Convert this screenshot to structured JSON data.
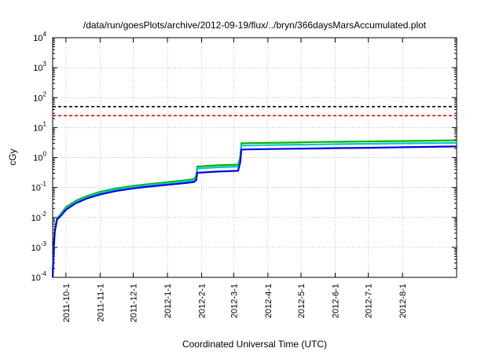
{
  "chart_data": {
    "type": "line",
    "title": "/data/run/goesPlots/archive/2012-09-19/flux/../bryn/366daysMarsAccumulated.plot",
    "xlabel": "Coordinated Universal Time (UTC)",
    "ylabel": "cGy",
    "yscale": "log",
    "ylim": [
      0.0001,
      10000
    ],
    "xlim": [
      "2011-09-19",
      "2012-09-19"
    ],
    "grid": true,
    "legend": "none",
    "x_ticks": [
      "2011-10-1",
      "2011-11-1",
      "2011-12-1",
      "2012-1-1",
      "2012-2-1",
      "2012-3-1",
      "2012-4-1",
      "2012-5-1",
      "2012-6-1",
      "2012-7-1",
      "2012-8-1"
    ],
    "y_ticks": [
      {
        "value": 0.0001,
        "base": "10",
        "exp": "-4"
      },
      {
        "value": 0.001,
        "base": "10",
        "exp": "-3"
      },
      {
        "value": 0.01,
        "base": "10",
        "exp": "-2"
      },
      {
        "value": 0.1,
        "base": "10",
        "exp": "-1"
      },
      {
        "value": 1,
        "base": "10",
        "exp": "0"
      },
      {
        "value": 10,
        "base": "10",
        "exp": "1"
      },
      {
        "value": 100,
        "base": "10",
        "exp": "2"
      },
      {
        "value": 1000,
        "base": "10",
        "exp": "3"
      },
      {
        "value": 10000,
        "base": "10",
        "exp": "4"
      }
    ],
    "reference_lines": [
      {
        "value": 50,
        "color": "#000000",
        "style": "dashed"
      },
      {
        "value": 25,
        "color": "#ff0000",
        "style": "dashed"
      }
    ],
    "series": [
      {
        "color": "#00b400",
        "points": [
          [
            "2011-09-19",
            0.0001
          ],
          [
            "2011-09-20",
            0.0011
          ],
          [
            "2011-09-21",
            0.004
          ],
          [
            "2011-09-23",
            0.0095
          ],
          [
            "2011-09-26",
            0.0125
          ],
          [
            "2011-10-01",
            0.022
          ],
          [
            "2011-10-10",
            0.036
          ],
          [
            "2011-10-20",
            0.052
          ],
          [
            "2011-11-01",
            0.072
          ],
          [
            "2011-11-15",
            0.092
          ],
          [
            "2011-12-01",
            0.113
          ],
          [
            "2011-12-15",
            0.13
          ],
          [
            "2012-01-01",
            0.15
          ],
          [
            "2012-01-15",
            0.17
          ],
          [
            "2012-01-25",
            0.19
          ],
          [
            "2012-01-27",
            0.24
          ],
          [
            "2012-01-28",
            0.5
          ],
          [
            "2012-02-15",
            0.55
          ],
          [
            "2012-03-05",
            0.58
          ],
          [
            "2012-03-07",
            1.0
          ],
          [
            "2012-03-08",
            3.0
          ],
          [
            "2012-04-01",
            3.1
          ],
          [
            "2012-05-01",
            3.2
          ],
          [
            "2012-05-17",
            3.3
          ],
          [
            "2012-06-01",
            3.35
          ],
          [
            "2012-07-01",
            3.45
          ],
          [
            "2012-08-01",
            3.55
          ],
          [
            "2012-09-19",
            3.75
          ]
        ]
      },
      {
        "color": "#00c8c8",
        "points": [
          [
            "2011-09-19",
            0.0001
          ],
          [
            "2011-09-20",
            0.0011
          ],
          [
            "2011-09-21",
            0.004
          ],
          [
            "2011-09-23",
            0.009
          ],
          [
            "2011-09-26",
            0.0118
          ],
          [
            "2011-10-01",
            0.02
          ],
          [
            "2011-10-10",
            0.033
          ],
          [
            "2011-10-20",
            0.048
          ],
          [
            "2011-11-01",
            0.066
          ],
          [
            "2011-11-15",
            0.085
          ],
          [
            "2011-12-01",
            0.104
          ],
          [
            "2011-12-15",
            0.12
          ],
          [
            "2012-01-01",
            0.138
          ],
          [
            "2012-01-15",
            0.156
          ],
          [
            "2012-01-25",
            0.175
          ],
          [
            "2012-01-27",
            0.21
          ],
          [
            "2012-01-28",
            0.43
          ],
          [
            "2012-02-15",
            0.47
          ],
          [
            "2012-03-05",
            0.5
          ],
          [
            "2012-03-07",
            0.9
          ],
          [
            "2012-03-08",
            2.5
          ],
          [
            "2012-04-01",
            2.6
          ],
          [
            "2012-05-01",
            2.7
          ],
          [
            "2012-05-17",
            2.75
          ],
          [
            "2012-06-01",
            2.8
          ],
          [
            "2012-07-01",
            2.88
          ],
          [
            "2012-08-01",
            2.96
          ],
          [
            "2012-09-19",
            3.1
          ]
        ]
      },
      {
        "color": "#0000e6",
        "points": [
          [
            "2011-09-19",
            0.0001
          ],
          [
            "2011-09-20",
            0.001
          ],
          [
            "2011-09-21",
            0.0035
          ],
          [
            "2011-09-23",
            0.0085
          ],
          [
            "2011-09-26",
            0.011
          ],
          [
            "2011-10-01",
            0.018
          ],
          [
            "2011-10-10",
            0.03
          ],
          [
            "2011-10-20",
            0.043
          ],
          [
            "2011-11-01",
            0.059
          ],
          [
            "2011-11-15",
            0.076
          ],
          [
            "2011-12-01",
            0.093
          ],
          [
            "2011-12-15",
            0.107
          ],
          [
            "2012-01-01",
            0.123
          ],
          [
            "2012-01-15",
            0.138
          ],
          [
            "2012-01-25",
            0.153
          ],
          [
            "2012-01-27",
            0.175
          ],
          [
            "2012-01-28",
            0.31
          ],
          [
            "2012-02-15",
            0.34
          ],
          [
            "2012-03-05",
            0.36
          ],
          [
            "2012-03-07",
            0.7
          ],
          [
            "2012-03-08",
            1.85
          ],
          [
            "2012-04-01",
            1.92
          ],
          [
            "2012-05-01",
            1.98
          ],
          [
            "2012-05-17",
            2.02
          ],
          [
            "2012-06-01",
            2.06
          ],
          [
            "2012-07-01",
            2.12
          ],
          [
            "2012-08-01",
            2.2
          ],
          [
            "2012-09-19",
            2.35
          ]
        ]
      }
    ]
  }
}
